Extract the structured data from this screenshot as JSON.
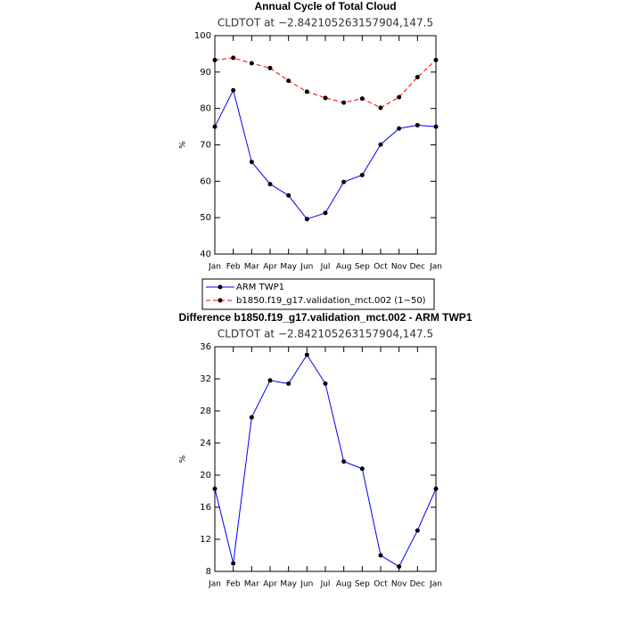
{
  "chart_data": [
    {
      "type": "line",
      "title": "Annual Cycle of Total Cloud",
      "subtitle": "CLDTOT at −2.842105263157904,147.5",
      "y_label": "%",
      "categories": [
        "Jan",
        "Feb",
        "Mar",
        "Apr",
        "May",
        "Jun",
        "Jul",
        "Aug",
        "Sep",
        "Oct",
        "Nov",
        "Dec",
        "Jan"
      ],
      "series": [
        {
          "name": "ARM TWP1",
          "color": "#0000ff",
          "dash": false,
          "values": [
            75,
            85,
            65.3,
            59.2,
            56.1,
            49.6,
            51.3,
            59.8,
            61.7,
            70.1,
            74.5,
            75.4,
            75
          ]
        },
        {
          "name": "b1850.f19_g17.validation_mct.002 (1−50)",
          "color": "#ff0000",
          "dash": true,
          "values": [
            93.3,
            93.9,
            92.4,
            91.1,
            87.6,
            84.6,
            82.9,
            81.6,
            82.7,
            80.2,
            83.1,
            88.6,
            93.3
          ]
        }
      ],
      "ylim": [
        40,
        100
      ],
      "yticks": [
        40,
        50,
        60,
        70,
        80,
        90,
        100
      ],
      "legend": "below"
    },
    {
      "type": "line",
      "title": "Difference b1850.f19_g17.validation_mct.002 - ARM TWP1",
      "subtitle": "CLDTOT at −2.842105263157904,147.5",
      "y_label": "%",
      "categories": [
        "Jan",
        "Feb",
        "Mar",
        "Apr",
        "May",
        "Jun",
        "Jul",
        "Aug",
        "Sep",
        "Oct",
        "Nov",
        "Dec",
        "Jan"
      ],
      "values": [
        18.3,
        9,
        27.2,
        31.8,
        31.4,
        35,
        31.4,
        21.7,
        20.8,
        10,
        8.6,
        13.1,
        18.3
      ],
      "color": "#0000ff",
      "ylim": [
        8,
        36
      ],
      "yticks": [
        8,
        12,
        16,
        20,
        24,
        28,
        32,
        36
      ]
    }
  ]
}
